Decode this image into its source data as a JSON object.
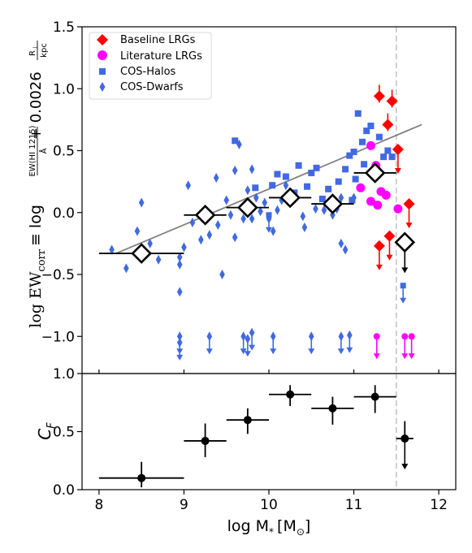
{
  "chart_data": [
    {
      "type": "scatter",
      "xlim": [
        7.8,
        12.2
      ],
      "ylim": [
        -1.3,
        1.5
      ],
      "yticks": [
        -1.0,
        -0.5,
        0.0,
        0.5,
        1.0,
        1.5
      ],
      "ytick_labels": [
        "−1.0",
        "−0.5",
        "0.0",
        "0.5",
        "1.0",
        "1.5"
      ],
      "ylabel": {
        "main": "log EW",
        "sub": "corr",
        "equiv": "≡ log",
        "frac_num": "EW(HI 1215)",
        "frac_den": "Å",
        "plus": "+ 0.0026",
        "ratio_num": "R",
        "ratio_num_sub": "⊥",
        "ratio_den": "kpc"
      },
      "grid": false,
      "legend": {
        "placement": "top-left",
        "entries": [
          {
            "label": "Baseline LRGs",
            "marker": "diamond",
            "color": "#ff0000"
          },
          {
            "label": "Literature LRGs",
            "marker": "circle",
            "color": "#ff00ff"
          },
          {
            "label": "COS-Halos",
            "marker": "square",
            "color": "#4169e1"
          },
          {
            "label": "COS-Dwarfs",
            "marker": "thin-diamond",
            "color": "#4169e1"
          }
        ]
      },
      "vline_x": 11.5,
      "fit_line": {
        "x": [
          8.2,
          11.8
        ],
        "y": [
          -0.33,
          0.71
        ],
        "color": "#808080"
      },
      "series": [
        {
          "name": "Baseline LRGs",
          "color": "#ff0000",
          "detections": [
            [
              11.3,
              0.94
            ],
            [
              11.4,
              0.71
            ],
            [
              11.45,
              0.9
            ]
          ],
          "upper_limits": [
            [
              11.52,
              0.51
            ],
            [
              11.3,
              -0.27
            ],
            [
              11.42,
              -0.19
            ],
            [
              11.65,
              0.07
            ]
          ]
        },
        {
          "name": "Literature LRGs",
          "color": "#ff00ff",
          "detections": [
            [
              11.2,
              0.54
            ],
            [
              11.26,
              0.38
            ],
            [
              11.08,
              0.2
            ],
            [
              11.32,
              0.17
            ],
            [
              11.38,
              0.14
            ],
            [
              11.2,
              0.09
            ],
            [
              11.28,
              0.06
            ],
            [
              11.52,
              0.03
            ]
          ],
          "upper_limits": [
            [
              11.27,
              -1.0
            ],
            [
              11.6,
              -1.0
            ],
            [
              11.68,
              -1.0
            ]
          ]
        },
        {
          "name": "COS-Halos",
          "color": "#4169e1",
          "detections": [
            [
              9.6,
              0.58
            ],
            [
              9.84,
              0.2
            ],
            [
              10.04,
              0.22
            ],
            [
              10.1,
              0.31
            ],
            [
              10.2,
              0.29
            ],
            [
              10.3,
              0.16
            ],
            [
              10.35,
              0.38
            ],
            [
              10.45,
              0.21
            ],
            [
              10.5,
              0.32
            ],
            [
              10.56,
              0.36
            ],
            [
              10.63,
              0.11
            ],
            [
              10.7,
              0.19
            ],
            [
              10.78,
              0.08
            ],
            [
              10.82,
              0.25
            ],
            [
              10.9,
              0.35
            ],
            [
              10.95,
              0.46
            ],
            [
              11.0,
              0.49
            ],
            [
              11.02,
              0.27
            ],
            [
              11.05,
              0.8
            ],
            [
              11.1,
              0.57
            ],
            [
              11.15,
              0.66
            ],
            [
              11.2,
              0.7
            ],
            [
              11.3,
              0.61
            ],
            [
              11.35,
              0.45
            ],
            [
              11.4,
              0.5
            ],
            [
              11.45,
              0.45
            ],
            [
              11.12,
              0.39
            ],
            [
              10.98,
              0.1
            ]
          ],
          "upper_limits": [
            [
              11.58,
              -0.59
            ],
            [
              10.0,
              -0.02
            ]
          ]
        },
        {
          "name": "COS-Dwarfs",
          "color": "#4169e1",
          "detections": [
            [
              8.15,
              -0.3
            ],
            [
              8.32,
              -0.45
            ],
            [
              8.45,
              -0.15
            ],
            [
              8.5,
              0.08
            ],
            [
              8.6,
              -0.25
            ],
            [
              8.7,
              -0.38
            ],
            [
              8.95,
              -0.36
            ],
            [
              8.95,
              -0.42
            ],
            [
              8.95,
              -0.64
            ],
            [
              9.0,
              -0.28
            ],
            [
              9.05,
              0.22
            ],
            [
              9.1,
              -0.08
            ],
            [
              9.2,
              -0.22
            ],
            [
              9.3,
              -0.18
            ],
            [
              9.38,
              0.28
            ],
            [
              9.4,
              -0.1
            ],
            [
              9.45,
              -0.5
            ],
            [
              9.5,
              0.1
            ],
            [
              9.55,
              -0.02
            ],
            [
              9.6,
              -0.2
            ],
            [
              9.6,
              0.34
            ],
            [
              9.65,
              0.55
            ],
            [
              9.7,
              -0.05
            ],
            [
              9.75,
              0.18
            ],
            [
              9.8,
              -0.05
            ],
            [
              9.8,
              0.35
            ],
            [
              9.85,
              0.12
            ],
            [
              9.9,
              0.01
            ],
            [
              9.95,
              0.08
            ],
            [
              10.0,
              -0.05
            ],
            [
              10.05,
              -0.15
            ],
            [
              10.1,
              0.02
            ],
            [
              10.15,
              0.1
            ],
            [
              10.2,
              0.22
            ],
            [
              10.4,
              -0.03
            ],
            [
              10.42,
              -0.12
            ],
            [
              10.55,
              0.03
            ],
            [
              10.65,
              0.02
            ],
            [
              10.75,
              -0.02
            ],
            [
              10.8,
              0.03
            ],
            [
              10.85,
              0.12
            ],
            [
              10.85,
              -0.25
            ],
            [
              10.9,
              -0.3
            ],
            [
              11.0,
              0.12
            ]
          ],
          "upper_limits": [
            [
              8.95,
              -1.0
            ],
            [
              8.95,
              -1.05
            ],
            [
              9.3,
              -1.0
            ],
            [
              9.7,
              -1.0
            ],
            [
              9.75,
              -1.02
            ],
            [
              9.8,
              -0.97
            ],
            [
              10.05,
              -1.0
            ],
            [
              10.5,
              -1.0
            ],
            [
              10.85,
              -1.0
            ],
            [
              10.95,
              -0.99
            ]
          ]
        },
        {
          "name": "Binned",
          "color": "#000000",
          "bins": [
            {
              "x": 8.5,
              "y": -0.33,
              "xerr": 0.5,
              "yerr": 0.0
            },
            {
              "x": 9.25,
              "y": -0.02,
              "xerr": 0.25,
              "yerr": 0.02
            },
            {
              "x": 9.75,
              "y": 0.04,
              "xerr": 0.25,
              "yerr": 0.03
            },
            {
              "x": 10.25,
              "y": 0.12,
              "xerr": 0.25,
              "yerr": 0.03
            },
            {
              "x": 10.75,
              "y": 0.07,
              "xerr": 0.25,
              "yerr": 0.03
            },
            {
              "x": 11.25,
              "y": 0.32,
              "xerr": 0.25,
              "yerr": 0.06
            }
          ],
          "upper_limit": {
            "x": 11.6,
            "y": -0.24,
            "xerr": 0.1
          }
        }
      ]
    },
    {
      "type": "scatter",
      "xlim": [
        7.8,
        12.2
      ],
      "ylim": [
        0.0,
        1.0
      ],
      "xticks": [
        8,
        9,
        10,
        11,
        12
      ],
      "xtick_labels": [
        "8",
        "9",
        "10",
        "11",
        "12"
      ],
      "yticks": [
        0.0,
        0.5,
        1.0
      ],
      "ytick_labels": [
        "0.0",
        "0.5",
        "1.0"
      ],
      "xlabel": {
        "main": "log M",
        "sub": "*",
        "unit_open": "[M",
        "unit_sub": "⊙",
        "unit_close": "]"
      },
      "ylabel": {
        "main": "C",
        "sub": "F"
      },
      "grid": false,
      "vline_x": 11.5,
      "points": [
        {
          "x": 8.5,
          "y": 0.1,
          "xerr": 0.5,
          "yerr": [
            0.08,
            0.14
          ]
        },
        {
          "x": 9.25,
          "y": 0.42,
          "xerr": 0.25,
          "yerr": [
            0.14,
            0.15
          ]
        },
        {
          "x": 9.75,
          "y": 0.6,
          "xerr": 0.25,
          "yerr": [
            0.12,
            0.1
          ]
        },
        {
          "x": 10.25,
          "y": 0.82,
          "xerr": 0.25,
          "yerr": [
            0.1,
            0.08
          ]
        },
        {
          "x": 10.75,
          "y": 0.7,
          "xerr": 0.25,
          "yerr": [
            0.14,
            0.1
          ]
        },
        {
          "x": 11.25,
          "y": 0.8,
          "xerr": 0.25,
          "yerr": [
            0.14,
            0.1
          ]
        }
      ],
      "upper_limit": {
        "x": 11.6,
        "y": 0.44,
        "xerr": 0.1,
        "yerr_up": 0.15
      }
    }
  ]
}
